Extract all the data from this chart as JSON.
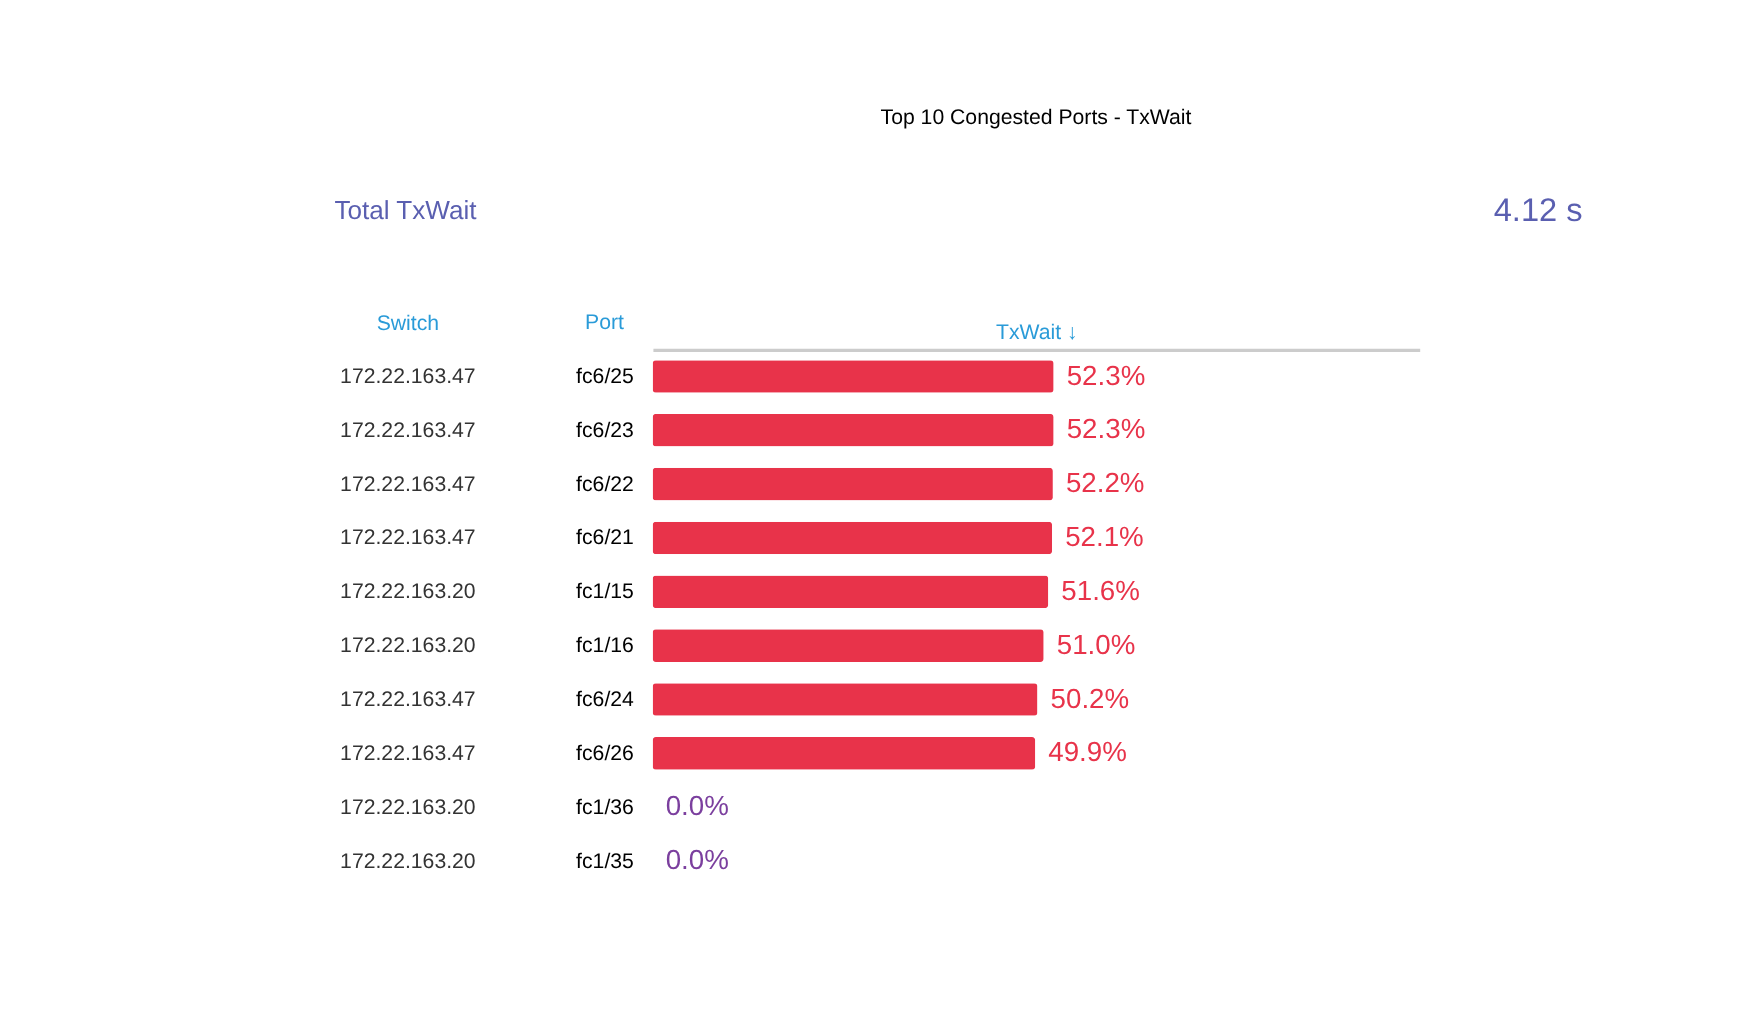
{
  "chart_data": {
    "type": "bar",
    "orientation": "horizontal",
    "title": "Top 10 Congested Ports - TxWait",
    "xlabel": "TxWait ↓",
    "ylabel": "Port",
    "categories": [
      "fc6/25",
      "fc6/23",
      "fc6/22",
      "fc6/21",
      "fc1/15",
      "fc1/16",
      "fc6/24",
      "fc6/26",
      "fc1/36",
      "fc1/35"
    ],
    "values": [
      52.3,
      52.3,
      52.2,
      52.1,
      51.6,
      51.0,
      50.2,
      49.9,
      0.0,
      0.0
    ],
    "value_labels": [
      "52.3%",
      "52.3%",
      "52.2%",
      "52.1%",
      "51.6%",
      "51.0%",
      "50.2%",
      "49.9%",
      "0.0%",
      "0.0%"
    ],
    "colors": [
      "#e8334a",
      "#e8334a",
      "#e8334a",
      "#e8334a",
      "#e8334a",
      "#e8334a",
      "#e8334a",
      "#e8334a",
      "#7b3f9e",
      "#7b3f9e"
    ],
    "xlim": [
      0,
      100
    ],
    "tick_labels": "y",
    "grid": false,
    "annotations": [
      "Total TxWait",
      "4.12 s",
      "Switch",
      "172.22.163.47",
      "172.22.163.47",
      "172.22.163.47",
      "172.22.163.47",
      "172.22.163.20",
      "172.22.163.20",
      "172.22.163.47",
      "172.22.163.47",
      "172.22.163.20",
      "172.22.163.20"
    ]
  }
}
